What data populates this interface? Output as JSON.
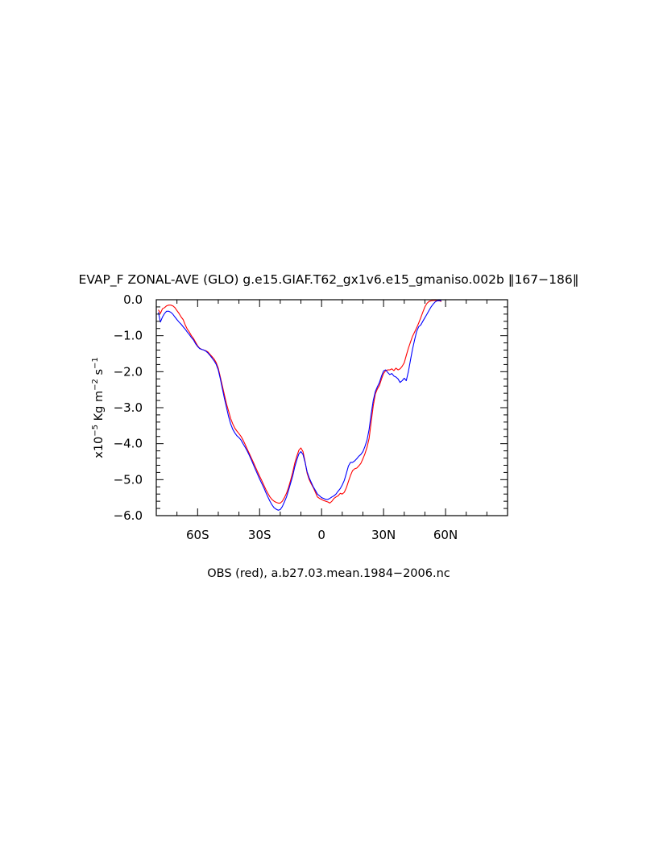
{
  "chart_data": {
    "type": "line",
    "title": "EVAP_F ZONAL-AVE (GLO) g.e15.GIAF.T62_gx1v6.e15_gmaniso.002b ‖167−186‖",
    "ylabel": {
      "prefix": "x10",
      "exp1": "−5",
      "mid": " Kg m",
      "exp2": "−2",
      "mid2": " s",
      "exp3": "−1"
    },
    "footer": "OBS (red), a.b27.03.mean.1984−2006.nc",
    "xlim": [
      -80,
      90
    ],
    "ylim": [
      -6.0,
      0.0
    ],
    "xticks": [
      {
        "value": -60,
        "label": "60S"
      },
      {
        "value": -30,
        "label": "30S"
      },
      {
        "value": 0,
        "label": "0"
      },
      {
        "value": 30,
        "label": "30N"
      },
      {
        "value": 60,
        "label": "60N"
      }
    ],
    "yticks": [
      {
        "value": 0.0,
        "label": "0.0"
      },
      {
        "value": -1.0,
        "label": "−1.0"
      },
      {
        "value": -2.0,
        "label": "−2.0"
      },
      {
        "value": -3.0,
        "label": "−3.0"
      },
      {
        "value": -4.0,
        "label": "−4.0"
      },
      {
        "value": -5.0,
        "label": "−5.0"
      },
      {
        "value": -6.0,
        "label": "−6.0"
      }
    ],
    "grid": false,
    "series": [
      {
        "color": "#ff0000",
        "points": [
          [
            -79,
            -0.28
          ],
          [
            -78,
            -0.38
          ],
          [
            -77,
            -0.25
          ],
          [
            -76,
            -0.22
          ],
          [
            -75,
            -0.17
          ],
          [
            -74,
            -0.15
          ],
          [
            -73,
            -0.15
          ],
          [
            -72,
            -0.17
          ],
          [
            -71,
            -0.22
          ],
          [
            -70,
            -0.3
          ],
          [
            -69,
            -0.38
          ],
          [
            -68,
            -0.48
          ],
          [
            -67,
            -0.55
          ],
          [
            -66,
            -0.7
          ],
          [
            -65,
            -0.82
          ],
          [
            -64,
            -0.9
          ],
          [
            -63,
            -1.0
          ],
          [
            -62,
            -1.08
          ],
          [
            -61,
            -1.18
          ],
          [
            -60,
            -1.28
          ],
          [
            -59,
            -1.35
          ],
          [
            -58,
            -1.38
          ],
          [
            -57,
            -1.4
          ],
          [
            -56,
            -1.42
          ],
          [
            -55,
            -1.45
          ],
          [
            -54,
            -1.52
          ],
          [
            -53,
            -1.58
          ],
          [
            -52,
            -1.65
          ],
          [
            -51,
            -1.75
          ],
          [
            -50,
            -1.9
          ],
          [
            -49,
            -2.15
          ],
          [
            -48,
            -2.4
          ],
          [
            -47,
            -2.65
          ],
          [
            -46,
            -2.9
          ],
          [
            -45,
            -3.1
          ],
          [
            -44,
            -3.3
          ],
          [
            -43,
            -3.45
          ],
          [
            -42,
            -3.57
          ],
          [
            -41,
            -3.65
          ],
          [
            -40,
            -3.72
          ],
          [
            -39,
            -3.8
          ],
          [
            -38,
            -3.9
          ],
          [
            -37,
            -4.02
          ],
          [
            -36,
            -4.15
          ],
          [
            -35,
            -4.27
          ],
          [
            -34,
            -4.4
          ],
          [
            -33,
            -4.52
          ],
          [
            -32,
            -4.65
          ],
          [
            -31,
            -4.78
          ],
          [
            -30,
            -4.9
          ],
          [
            -29,
            -5.02
          ],
          [
            -28,
            -5.15
          ],
          [
            -27,
            -5.27
          ],
          [
            -26,
            -5.38
          ],
          [
            -25,
            -5.48
          ],
          [
            -24,
            -5.55
          ],
          [
            -23,
            -5.6
          ],
          [
            -22,
            -5.63
          ],
          [
            -21,
            -5.65
          ],
          [
            -20,
            -5.65
          ],
          [
            -19,
            -5.6
          ],
          [
            -18,
            -5.5
          ],
          [
            -17,
            -5.38
          ],
          [
            -16,
            -5.22
          ],
          [
            -15,
            -5.02
          ],
          [
            -14,
            -4.8
          ],
          [
            -13,
            -4.55
          ],
          [
            -12,
            -4.35
          ],
          [
            -11,
            -4.18
          ],
          [
            -10,
            -4.12
          ],
          [
            -9,
            -4.22
          ],
          [
            -8,
            -4.5
          ],
          [
            -7,
            -4.82
          ],
          [
            -6,
            -5.0
          ],
          [
            -5,
            -5.12
          ],
          [
            -4,
            -5.22
          ],
          [
            -3,
            -5.35
          ],
          [
            -2,
            -5.48
          ],
          [
            -1,
            -5.52
          ],
          [
            0,
            -5.55
          ],
          [
            1,
            -5.58
          ],
          [
            2,
            -5.6
          ],
          [
            3,
            -5.62
          ],
          [
            4,
            -5.65
          ],
          [
            5,
            -5.6
          ],
          [
            6,
            -5.52
          ],
          [
            7,
            -5.48
          ],
          [
            8,
            -5.45
          ],
          [
            9,
            -5.38
          ],
          [
            10,
            -5.4
          ],
          [
            11,
            -5.35
          ],
          [
            12,
            -5.22
          ],
          [
            13,
            -5.05
          ],
          [
            14,
            -4.88
          ],
          [
            15,
            -4.75
          ],
          [
            16,
            -4.7
          ],
          [
            17,
            -4.68
          ],
          [
            18,
            -4.62
          ],
          [
            19,
            -4.55
          ],
          [
            20,
            -4.42
          ],
          [
            21,
            -4.28
          ],
          [
            22,
            -4.1
          ],
          [
            23,
            -3.85
          ],
          [
            24,
            -3.4
          ],
          [
            25,
            -2.95
          ],
          [
            26,
            -2.62
          ],
          [
            27,
            -2.48
          ],
          [
            28,
            -2.38
          ],
          [
            29,
            -2.2
          ],
          [
            30,
            -2.05
          ],
          [
            31,
            -1.97
          ],
          [
            32,
            -1.95
          ],
          [
            33,
            -1.95
          ],
          [
            34,
            -1.92
          ],
          [
            35,
            -1.97
          ],
          [
            36,
            -1.9
          ],
          [
            37,
            -1.95
          ],
          [
            38,
            -1.92
          ],
          [
            39,
            -1.85
          ],
          [
            40,
            -1.75
          ],
          [
            41,
            -1.55
          ],
          [
            42,
            -1.35
          ],
          [
            43,
            -1.18
          ],
          [
            44,
            -1.02
          ],
          [
            45,
            -0.9
          ],
          [
            46,
            -0.78
          ],
          [
            47,
            -0.65
          ],
          [
            48,
            -0.5
          ],
          [
            49,
            -0.35
          ],
          [
            50,
            -0.2
          ],
          [
            51,
            -0.1
          ],
          [
            52,
            -0.05
          ],
          [
            53,
            -0.03
          ],
          [
            54,
            -0.02
          ],
          [
            55,
            -0.02
          ],
          [
            56,
            -0.03
          ],
          [
            57,
            -0.03
          ],
          [
            58,
            -0.05
          ]
        ]
      },
      {
        "color": "#0000ff",
        "points": [
          [
            -79,
            -0.35
          ],
          [
            -78,
            -0.62
          ],
          [
            -77,
            -0.48
          ],
          [
            -76,
            -0.38
          ],
          [
            -75,
            -0.32
          ],
          [
            -74,
            -0.32
          ],
          [
            -73,
            -0.35
          ],
          [
            -72,
            -0.4
          ],
          [
            -71,
            -0.48
          ],
          [
            -70,
            -0.55
          ],
          [
            -69,
            -0.62
          ],
          [
            -68,
            -0.68
          ],
          [
            -67,
            -0.75
          ],
          [
            -66,
            -0.82
          ],
          [
            -65,
            -0.9
          ],
          [
            -64,
            -0.97
          ],
          [
            -63,
            -1.05
          ],
          [
            -62,
            -1.12
          ],
          [
            -61,
            -1.22
          ],
          [
            -60,
            -1.3
          ],
          [
            -59,
            -1.36
          ],
          [
            -58,
            -1.38
          ],
          [
            -57,
            -1.4
          ],
          [
            -56,
            -1.43
          ],
          [
            -55,
            -1.48
          ],
          [
            -54,
            -1.55
          ],
          [
            -53,
            -1.62
          ],
          [
            -52,
            -1.7
          ],
          [
            -51,
            -1.8
          ],
          [
            -50,
            -1.95
          ],
          [
            -49,
            -2.2
          ],
          [
            -48,
            -2.48
          ],
          [
            -47,
            -2.75
          ],
          [
            -46,
            -3.0
          ],
          [
            -45,
            -3.25
          ],
          [
            -44,
            -3.45
          ],
          [
            -43,
            -3.6
          ],
          [
            -42,
            -3.7
          ],
          [
            -41,
            -3.78
          ],
          [
            -40,
            -3.83
          ],
          [
            -39,
            -3.9
          ],
          [
            -38,
            -4.0
          ],
          [
            -37,
            -4.1
          ],
          [
            -36,
            -4.2
          ],
          [
            -35,
            -4.32
          ],
          [
            -34,
            -4.45
          ],
          [
            -33,
            -4.58
          ],
          [
            -32,
            -4.72
          ],
          [
            -31,
            -4.85
          ],
          [
            -30,
            -4.98
          ],
          [
            -29,
            -5.1
          ],
          [
            -28,
            -5.22
          ],
          [
            -27,
            -5.35
          ],
          [
            -26,
            -5.48
          ],
          [
            -25,
            -5.6
          ],
          [
            -24,
            -5.7
          ],
          [
            -23,
            -5.78
          ],
          [
            -22,
            -5.82
          ],
          [
            -21,
            -5.85
          ],
          [
            -20,
            -5.83
          ],
          [
            -19,
            -5.75
          ],
          [
            -18,
            -5.62
          ],
          [
            -17,
            -5.48
          ],
          [
            -16,
            -5.3
          ],
          [
            -15,
            -5.1
          ],
          [
            -14,
            -4.9
          ],
          [
            -13,
            -4.65
          ],
          [
            -12,
            -4.45
          ],
          [
            -11,
            -4.28
          ],
          [
            -10,
            -4.22
          ],
          [
            -9,
            -4.3
          ],
          [
            -8,
            -4.52
          ],
          [
            -7,
            -4.78
          ],
          [
            -6,
            -4.95
          ],
          [
            -5,
            -5.08
          ],
          [
            -4,
            -5.2
          ],
          [
            -3,
            -5.3
          ],
          [
            -2,
            -5.4
          ],
          [
            -1,
            -5.45
          ],
          [
            0,
            -5.5
          ],
          [
            1,
            -5.52
          ],
          [
            2,
            -5.55
          ],
          [
            3,
            -5.55
          ],
          [
            4,
            -5.52
          ],
          [
            5,
            -5.48
          ],
          [
            6,
            -5.45
          ],
          [
            7,
            -5.4
          ],
          [
            8,
            -5.32
          ],
          [
            9,
            -5.25
          ],
          [
            10,
            -5.15
          ],
          [
            11,
            -5.02
          ],
          [
            12,
            -4.82
          ],
          [
            13,
            -4.62
          ],
          [
            14,
            -4.52
          ],
          [
            15,
            -4.52
          ],
          [
            16,
            -4.48
          ],
          [
            17,
            -4.42
          ],
          [
            18,
            -4.35
          ],
          [
            19,
            -4.3
          ],
          [
            20,
            -4.22
          ],
          [
            21,
            -4.08
          ],
          [
            22,
            -3.9
          ],
          [
            23,
            -3.6
          ],
          [
            24,
            -3.18
          ],
          [
            25,
            -2.8
          ],
          [
            26,
            -2.55
          ],
          [
            27,
            -2.42
          ],
          [
            28,
            -2.3
          ],
          [
            29,
            -2.12
          ],
          [
            30,
            -1.98
          ],
          [
            31,
            -1.95
          ],
          [
            32,
            -2.02
          ],
          [
            33,
            -2.08
          ],
          [
            34,
            -2.05
          ],
          [
            35,
            -2.12
          ],
          [
            36,
            -2.15
          ],
          [
            37,
            -2.2
          ],
          [
            38,
            -2.3
          ],
          [
            39,
            -2.25
          ],
          [
            40,
            -2.18
          ],
          [
            41,
            -2.25
          ],
          [
            42,
            -2.0
          ],
          [
            43,
            -1.68
          ],
          [
            44,
            -1.38
          ],
          [
            45,
            -1.12
          ],
          [
            46,
            -0.88
          ],
          [
            47,
            -0.75
          ],
          [
            48,
            -0.7
          ],
          [
            49,
            -0.6
          ],
          [
            50,
            -0.5
          ],
          [
            51,
            -0.4
          ],
          [
            52,
            -0.3
          ],
          [
            53,
            -0.2
          ],
          [
            54,
            -0.12
          ],
          [
            55,
            -0.06
          ],
          [
            56,
            -0.03
          ],
          [
            57,
            -0.02
          ],
          [
            58,
            -0.03
          ]
        ]
      }
    ]
  }
}
